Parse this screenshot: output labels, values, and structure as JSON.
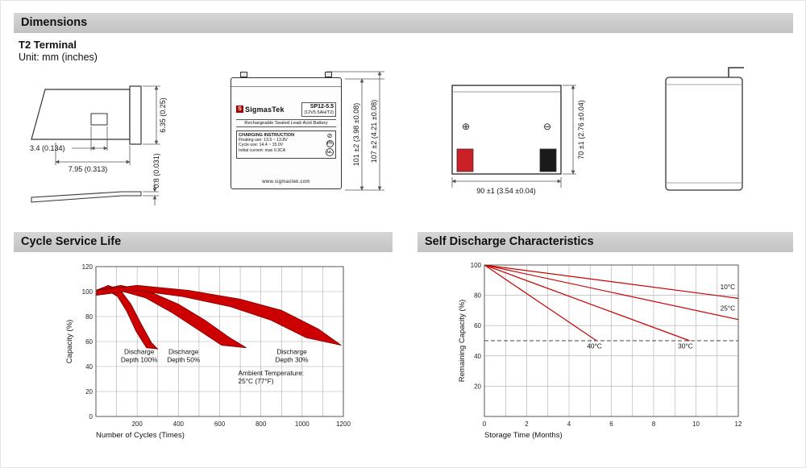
{
  "page": {
    "header_dimensions": "Dimensions",
    "terminal_type": "T2 Terminal",
    "unit_note": "Unit: mm (inches)"
  },
  "terminal_drawing": {
    "dim_blade_height": "6.35 (0.25)",
    "dim_hole": "3.4 (0.134)",
    "dim_length": "7.95 (0.313)",
    "dim_thickness": "0.8 (0.031)"
  },
  "front_view": {
    "logo_letter": "S",
    "brand": "SigmasTek",
    "model": "SP12-5.5",
    "spec": "(12V5.5AH/T2)",
    "battery_type": "Rechargeable Sealed Lead-Acid Battery",
    "charging_title": "CHARGING INSTRUCTION",
    "charging_line1": "Floating use: 13.5 ~ 13.8V",
    "charging_line2": "Cycle use: 14.4 ~ 15.0V",
    "charging_line3": "Initial current: max 0.3CA",
    "website": "www.sigmastek.com",
    "pb_label": "Pb",
    "ul_label": "UL",
    "crossed_bin": "⊘",
    "dim_height_case": "101 ±2 (3.98 ±0.08)",
    "dim_height_total": "107 ±2 (4.21 ±0.08)"
  },
  "side_view": {
    "positive_mark": "⊕",
    "negative_mark": "⊖",
    "dim_width": "90 ±1 (3.54 ±0.04)",
    "dim_height": "70 ±1 (2.76 ±0.04)"
  },
  "chart_data": [
    {
      "type": "area",
      "title": "Cycle Service Life",
      "xlabel": "Number of Cycles (Times)",
      "ylabel": "Capacity (%)",
      "xlim": [
        0,
        1200
      ],
      "ylim": [
        0,
        120
      ],
      "x_ticks": [
        200,
        400,
        600,
        800,
        1000,
        1200
      ],
      "y_ticks": [
        0,
        20,
        40,
        60,
        80,
        100,
        120
      ],
      "grid_x_step": 100,
      "grid_y_step": 20,
      "band_color": "#cc0000",
      "bands": [
        {
          "name": "Discharge Depth 100%",
          "upper_x": [
            0,
            60,
            120,
            170,
            220,
            270,
            300
          ],
          "upper_y": [
            101,
            105,
            101,
            90,
            74,
            59,
            54
          ],
          "lower_x": [
            0,
            55,
            105,
            150,
            195,
            245,
            300
          ],
          "lower_y": [
            97,
            101,
            96,
            84,
            68,
            55,
            54
          ]
        },
        {
          "name": "Discharge Depth 50%",
          "upper_x": [
            0,
            120,
            260,
            400,
            530,
            650,
            730
          ],
          "upper_y": [
            101,
            105,
            100,
            90,
            77,
            63,
            55
          ],
          "lower_x": [
            0,
            110,
            240,
            370,
            490,
            610,
            730
          ],
          "lower_y": [
            97,
            101,
            95,
            83,
            70,
            57,
            55
          ]
        },
        {
          "name": "Discharge Depth 30%",
          "upper_x": [
            0,
            200,
            450,
            700,
            900,
            1080,
            1190
          ],
          "upper_y": [
            101,
            105,
            101,
            94,
            85,
            70,
            57
          ],
          "lower_x": [
            0,
            190,
            420,
            650,
            850,
            1020,
            1190
          ],
          "lower_y": [
            97,
            101,
            96,
            88,
            77,
            63,
            57
          ]
        }
      ],
      "annotations": [
        {
          "lines": [
            "Discharge",
            "Depth 100%"
          ],
          "x": 210,
          "y": 50,
          "anchor": "middle"
        },
        {
          "lines": [
            "Discharge",
            "Depth 50%"
          ],
          "x": 425,
          "y": 50,
          "anchor": "middle"
        },
        {
          "lines": [
            "Discharge",
            "Depth 30%"
          ],
          "x": 950,
          "y": 50,
          "anchor": "middle"
        },
        {
          "lines": [
            "Ambient Temperature:",
            "25°C (77°F)"
          ],
          "x": 690,
          "y": 33,
          "anchor": "start"
        }
      ]
    },
    {
      "type": "line",
      "title": "Self Discharge Characteristics",
      "xlabel": "Storage Time (Months)",
      "ylabel": "Remaining Capacity (%)",
      "xlim": [
        0,
        12
      ],
      "ylim": [
        0,
        100
      ],
      "x_ticks": [
        0,
        2,
        4,
        6,
        8,
        10,
        12
      ],
      "y_ticks": [
        20,
        40,
        60,
        80,
        100
      ],
      "grid_x_step": 1,
      "grid_y_step": 20,
      "line_color": "#cc0000",
      "dashed_y": 50,
      "series": [
        {
          "name": "10°C",
          "x": [
            0,
            12
          ],
          "y": [
            100,
            78
          ]
        },
        {
          "name": "25°C",
          "x": [
            0,
            12
          ],
          "y": [
            100,
            64
          ]
        },
        {
          "name": "30°C",
          "x": [
            0,
            9.7
          ],
          "y": [
            100,
            50
          ]
        },
        {
          "name": "40°C",
          "x": [
            0,
            5.3
          ],
          "y": [
            100,
            50
          ]
        }
      ],
      "annotations": [
        {
          "lines": [
            "10°C"
          ],
          "x": 11.5,
          "y": 84,
          "anchor": "middle"
        },
        {
          "lines": [
            "25°C"
          ],
          "x": 11.5,
          "y": 70,
          "anchor": "middle"
        },
        {
          "lines": [
            "40°C"
          ],
          "x": 5.2,
          "y": 45,
          "anchor": "middle"
        },
        {
          "lines": [
            "30°C"
          ],
          "x": 9.5,
          "y": 45,
          "anchor": "middle"
        }
      ]
    }
  ]
}
